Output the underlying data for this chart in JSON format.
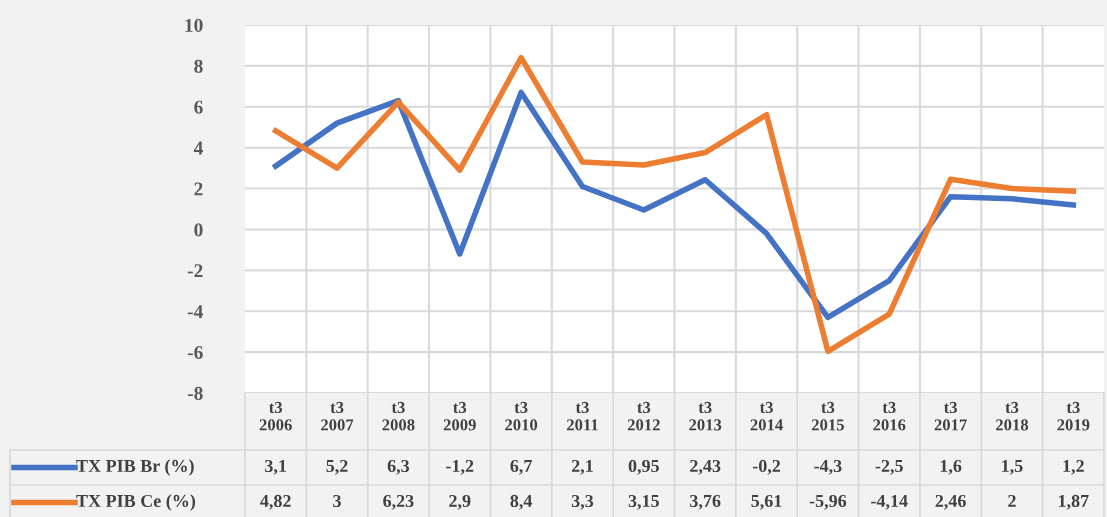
{
  "chart_data": {
    "type": "line",
    "categories": [
      "t3\n2006",
      "t3\n2007",
      "t3\n2008",
      "t3\n2009",
      "t3\n2010",
      "t3\n2011",
      "t3\n2012",
      "t3\n2013",
      "t3\n2014",
      "t3\n2015",
      "t3\n2016",
      "t3\n2017",
      "t3\n2018",
      "t3\n2019"
    ],
    "series": [
      {
        "name": "TX PIB Br (%)",
        "color": "#4472c4",
        "values": [
          3.1,
          5.2,
          6.3,
          -1.2,
          6.7,
          2.1,
          0.95,
          2.43,
          -0.2,
          -4.3,
          -2.5,
          1.6,
          1.5,
          1.2
        ],
        "value_labels": [
          "3,1",
          "5,2",
          "6,3",
          "-1,2",
          "6,7",
          "2,1",
          "0,95",
          "2,43",
          "-0,2",
          "-4,3",
          "-2,5",
          "1,6",
          "1,5",
          "1,2"
        ]
      },
      {
        "name": "TX PIB Ce (%)",
        "color": "#ed7d31",
        "values": [
          4.82,
          3,
          6.23,
          2.9,
          8.4,
          3.3,
          3.15,
          3.76,
          5.61,
          -5.96,
          -4.14,
          2.46,
          2,
          1.87
        ],
        "value_labels": [
          "4,82",
          "3",
          "6,23",
          "2,9",
          "8,4",
          "3,3",
          "3,15",
          "3,76",
          "5,61",
          "-5,96",
          "-4,14",
          "2,46",
          "2",
          "1,87"
        ]
      }
    ],
    "ylim": [
      -8,
      10
    ],
    "yticks": [
      -8,
      -6,
      -4,
      -2,
      0,
      2,
      4,
      6,
      8,
      10
    ],
    "grid": true,
    "legend": "bottom",
    "marker": "none",
    "line_style": "solid"
  }
}
